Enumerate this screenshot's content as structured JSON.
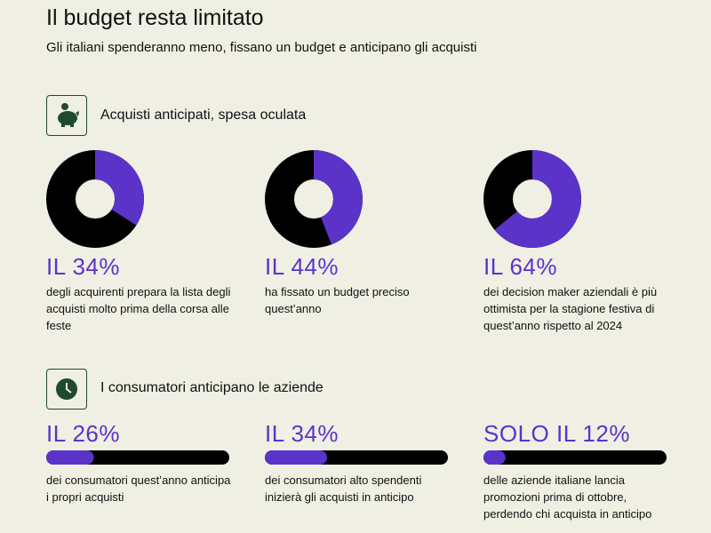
{
  "header": {
    "title": "Il budget resta limitato",
    "subtitle": "Gli italiani spenderanno meno, fissano un budget e anticipano gli acquisti"
  },
  "sections": [
    {
      "type": "donut",
      "heading": "Acquisti anticipati, spesa oculata",
      "valuelim": [
        0,
        100
      ],
      "color": "#5b33c9",
      "track_color": "#000000",
      "items": [
        {
          "value": 34,
          "label": "IL 34%",
          "text": "degli acquirenti prepara la lista degli acquisti molto prima della corsa alle feste"
        },
        {
          "value": 44,
          "label": "IL 44%",
          "text": "ha fissato un budget preciso quest’anno"
        },
        {
          "value": 64,
          "label": "IL 64%",
          "text": "dei decision maker aziendali è più ottimista per la stagione festiva di quest’anno rispetto al 2024"
        }
      ]
    },
    {
      "type": "progress",
      "heading": "I consumatori anticipano le aziende",
      "valuelim": [
        0,
        100
      ],
      "color": "#5b33c9",
      "track_color": "#000000",
      "items": [
        {
          "value": 26,
          "label": "IL 26%",
          "text": "dei consumatori quest’anno anticipa i propri acquisti"
        },
        {
          "value": 34,
          "label": "IL 34%",
          "text": "dei consumatori alto spendenti inizierà gli acquisti in anticipo"
        },
        {
          "value": 12,
          "label": "SOLO IL 12%",
          "text": "delle aziende italiane lancia promozioni prima di ottobre, perdendo chi acquista in anticipo"
        }
      ]
    }
  ]
}
